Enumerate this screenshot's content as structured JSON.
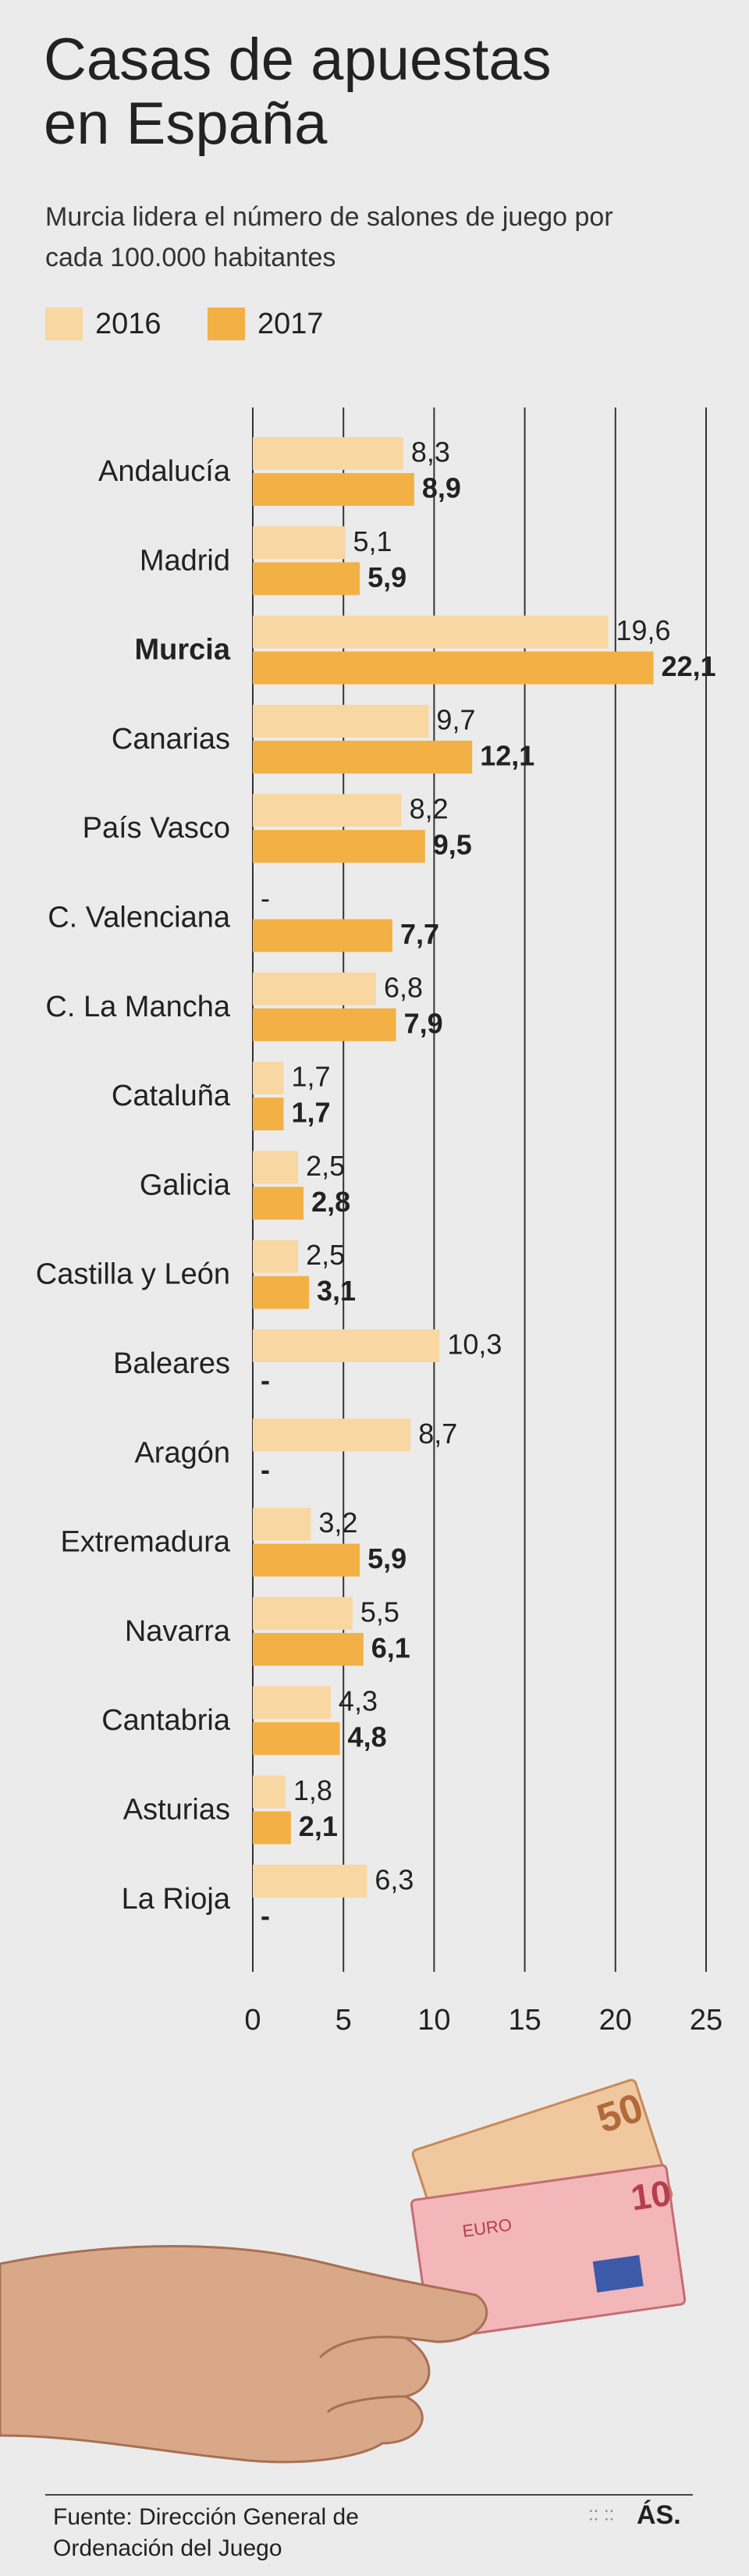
{
  "chart_data": {
    "type": "bar",
    "orientation": "horizontal",
    "title": "Casas de apuestas en España",
    "subtitle": "Murcia lidera el número de salones de juego por cada 100.000 habitantes",
    "categories": [
      "Andalucía",
      "Madrid",
      "Murcia",
      "Canarias",
      "País Vasco",
      "C. Valenciana",
      "C. La Mancha",
      "Cataluña",
      "Galicia",
      "Castilla y León",
      "Baleares",
      "Aragón",
      "Extremadura",
      "Navarra",
      "Cantabria",
      "Asturias",
      "La Rioja"
    ],
    "series": [
      {
        "name": "2016",
        "color": "#f9d7a2",
        "values": [
          8.3,
          5.1,
          19.6,
          9.7,
          8.2,
          null,
          6.8,
          1.7,
          2.5,
          2.5,
          10.3,
          8.7,
          3.2,
          5.5,
          4.3,
          1.8,
          6.3
        ],
        "value_labels": [
          "8,3",
          "5,1",
          "19,6",
          "9,7",
          "8,2",
          "-",
          "6,8",
          "1,7",
          "2,5",
          "2,5",
          "10,3",
          "8,7",
          "3,2",
          "5,5",
          "4,3",
          "1,8",
          "6,3"
        ]
      },
      {
        "name": "2017",
        "color": "#f3b044",
        "values": [
          8.9,
          5.9,
          22.1,
          12.1,
          9.5,
          7.7,
          7.9,
          1.7,
          2.8,
          3.1,
          null,
          null,
          5.9,
          6.1,
          4.8,
          2.1,
          null
        ],
        "value_labels": [
          "8,9",
          "5,9",
          "22,1",
          "12,1",
          "9,5",
          "7,7",
          "7,9",
          "1,7",
          "2,8",
          "3,1",
          "-",
          "-",
          "5,9",
          "6,1",
          "4,8",
          "2,1",
          "-"
        ]
      }
    ],
    "xlim": [
      0,
      25
    ],
    "xticks": [
      0,
      5,
      10,
      15,
      20,
      25
    ],
    "grid": true,
    "legend": "top-left"
  },
  "footer": {
    "source": "Fuente: Dirección General de Ordenación del Juego",
    "brand": "ÁS."
  }
}
